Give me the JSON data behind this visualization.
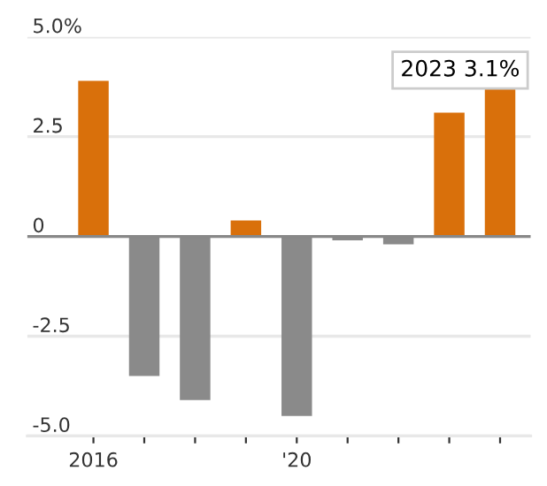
{
  "chart_data": {
    "type": "bar",
    "categories": [
      "2016",
      null,
      null,
      null,
      "'20",
      null,
      null,
      null,
      null
    ],
    "values": [
      3.9,
      -3.5,
      -4.1,
      0.4,
      -4.5,
      -0.1,
      -0.2,
      3.1,
      3.7
    ],
    "colors": [
      "#d9700b",
      "#8a8a8a",
      "#8a8a8a",
      "#d9700b",
      "#8a8a8a",
      "#8a8a8a",
      "#8a8a8a",
      "#d9700b",
      "#d9700b"
    ],
    "ylim": [
      -5,
      5
    ],
    "yticks": [
      {
        "value": 5,
        "label": "5.0%"
      },
      {
        "value": 2.5,
        "label": "2.5"
      },
      {
        "value": 0,
        "label": "0"
      },
      {
        "value": -2.5,
        "label": "-2.5"
      },
      {
        "value": -5,
        "label": "-5.0"
      }
    ],
    "grid": "y",
    "annotations": [
      "2023 3.1%"
    ]
  }
}
